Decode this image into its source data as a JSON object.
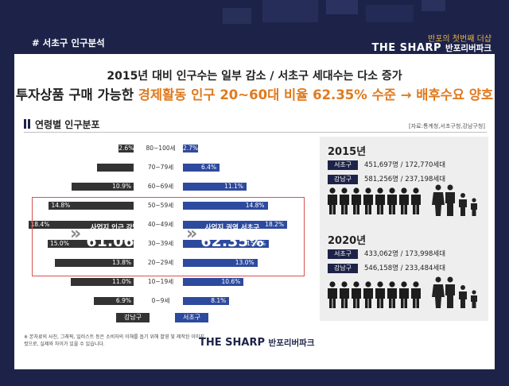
{
  "header": {
    "section_label": "# 서초구 인구분석",
    "slogan": "반포의 첫번째 더샵",
    "brand": "THE SHARP",
    "brand_sub": "반포리버파크"
  },
  "headline": {
    "line1": "2015년 대비 인구수는 일부 감소 / 서초구 세대수는 다소 증가",
    "line2_prefix": "투자상품 구매 가능한 ",
    "line2_highlight": "경제활동 인구 20~60대 비율 62.35% 수준",
    "line2_arrow": "→",
    "line2_suffix": "배후수요 양호"
  },
  "distribution": {
    "title": "연령별 인구분포",
    "source": "[자료:통계청,서초구청,강남구청]",
    "rows": [
      {
        "age": "80~100세",
        "gangnam": "2.6%",
        "seocho": "2.7%",
        "gangnam_pct": 2.6,
        "seocho_pct": 2.7
      },
      {
        "age": "70~79세",
        "gangnam": "",
        "seocho": "6.4%",
        "gangnam_pct": 6.4,
        "seocho_pct": 6.4
      },
      {
        "age": "60~69세",
        "gangnam": "10.9%",
        "seocho": "11.1%",
        "gangnam_pct": 10.9,
        "seocho_pct": 11.1
      },
      {
        "age": "50~59세",
        "gangnam": "14.8%",
        "seocho": "14.8%",
        "gangnam_pct": 14.8,
        "seocho_pct": 14.8
      },
      {
        "age": "40~49세",
        "gangnam": "18.4%",
        "seocho": "18.2%",
        "gangnam_pct": 18.4,
        "seocho_pct": 18.2
      },
      {
        "age": "30~39세",
        "gangnam": "15.0%",
        "seocho": "15.0%",
        "gangnam_pct": 15.0,
        "seocho_pct": 15.0
      },
      {
        "age": "20~29세",
        "gangnam": "13.8%",
        "seocho": "13.0%",
        "gangnam_pct": 13.8,
        "seocho_pct": 13.0
      },
      {
        "age": "10~19세",
        "gangnam": "11.0%",
        "seocho": "10.6%",
        "gangnam_pct": 11.0,
        "seocho_pct": 10.6
      },
      {
        "age": "0~9세",
        "gangnam": "6.9%",
        "seocho": "8.1%",
        "gangnam_pct": 6.9,
        "seocho_pct": 8.1
      }
    ],
    "highlight_left_title": "사업지 인근 강남구",
    "highlight_left_value": "61.06%",
    "highlight_right_title": "사업지 권역 서초구",
    "highlight_right_value": "62.35%",
    "legend_gangnam": "강남구",
    "legend_seocho": "서초구"
  },
  "stats": {
    "y2015": {
      "year": "2015년",
      "seocho_label": "서초구",
      "seocho_value": "451,697명 / 172,770세대",
      "gangnam_label": "강남구",
      "gangnam_value": "581,256명 / 237,198세대"
    },
    "y2020": {
      "year": "2020년",
      "seocho_label": "서초구",
      "seocho_value": "433,062명 / 173,998세대",
      "gangnam_label": "강남구",
      "gangnam_value": "546,158명 / 233,484세대"
    }
  },
  "footer": {
    "note": "※ 본자료의 사진, 그래픽, 일러스트 등은 소비자의 이해를 돕기 위해 촬영 및 제작된 이미지컷으로, 실제와 차이가 있을 수 있습니다.",
    "brand": "THE SHARP",
    "brand_sub": "반포리버파크"
  },
  "colors": {
    "navy": "#1d2348",
    "gangnam_bar": "#333333",
    "seocho_bar": "#2e4a9e",
    "accent_orange": "#e07a1f",
    "highlight_border": "#d9534f"
  }
}
